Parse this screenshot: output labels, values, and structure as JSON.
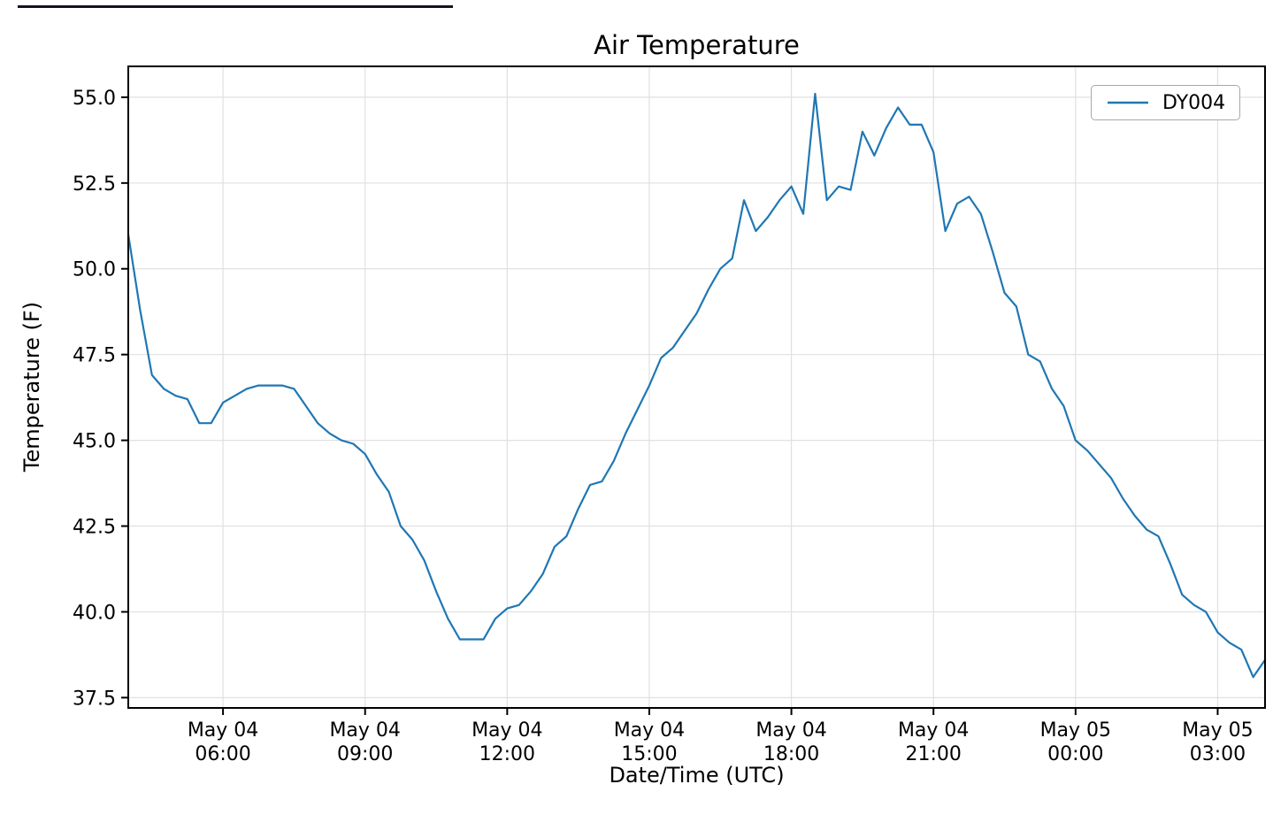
{
  "chart_data": {
    "type": "line",
    "title": "Air Temperature",
    "xlabel": "Date/Time (UTC)",
    "ylabel": "Temperature (F)",
    "grid": true,
    "legend_position": "upper right",
    "axis_color": "#000000",
    "grid_color": "#e0e0e0",
    "ylim": [
      37.2,
      55.9
    ],
    "xlim_hours": [
      0,
      24
    ],
    "yticks": [
      37.5,
      40.0,
      42.5,
      45.0,
      47.5,
      50.0,
      52.5,
      55.0
    ],
    "xticks": [
      {
        "h": 2,
        "lines": [
          "May 04",
          "06:00"
        ]
      },
      {
        "h": 5,
        "lines": [
          "May 04",
          "09:00"
        ]
      },
      {
        "h": 8,
        "lines": [
          "May 04",
          "12:00"
        ]
      },
      {
        "h": 11,
        "lines": [
          "May 04",
          "15:00"
        ]
      },
      {
        "h": 14,
        "lines": [
          "May 04",
          "18:00"
        ]
      },
      {
        "h": 17,
        "lines": [
          "May 04",
          "21:00"
        ]
      },
      {
        "h": 20,
        "lines": [
          "May 05",
          "00:00"
        ]
      },
      {
        "h": 23,
        "lines": [
          "May 05",
          "03:00"
        ]
      }
    ],
    "series": [
      {
        "name": "DY004",
        "color": "#1f77b4",
        "x_hours_start": 0,
        "x_hours_step": 0.25,
        "y": [
          51.0,
          48.8,
          46.9,
          46.5,
          46.3,
          46.2,
          45.5,
          45.5,
          46.1,
          46.3,
          46.5,
          46.6,
          46.6,
          46.6,
          46.5,
          46.0,
          45.5,
          45.2,
          45.0,
          44.9,
          44.6,
          44.0,
          43.5,
          42.5,
          42.1,
          41.5,
          40.6,
          39.8,
          39.2,
          39.2,
          39.2,
          39.8,
          40.1,
          40.2,
          40.6,
          41.1,
          41.9,
          42.2,
          43.0,
          43.7,
          43.8,
          44.4,
          45.2,
          45.9,
          46.6,
          47.4,
          47.7,
          48.2,
          48.7,
          49.4,
          50.0,
          50.3,
          52.0,
          51.1,
          51.5,
          52.0,
          52.4,
          51.6,
          55.1,
          52.0,
          52.4,
          52.3,
          54.0,
          53.3,
          54.1,
          54.7,
          54.2,
          54.2,
          53.4,
          51.1,
          51.9,
          52.1,
          51.6,
          50.5,
          49.3,
          48.9,
          47.5,
          47.3,
          46.5,
          46.0,
          45.0,
          44.7,
          44.3,
          43.9,
          43.3,
          42.8,
          42.4,
          42.2,
          41.4,
          40.5,
          40.2,
          40.0,
          39.4,
          39.1,
          38.9,
          38.1,
          38.6
        ]
      }
    ]
  }
}
